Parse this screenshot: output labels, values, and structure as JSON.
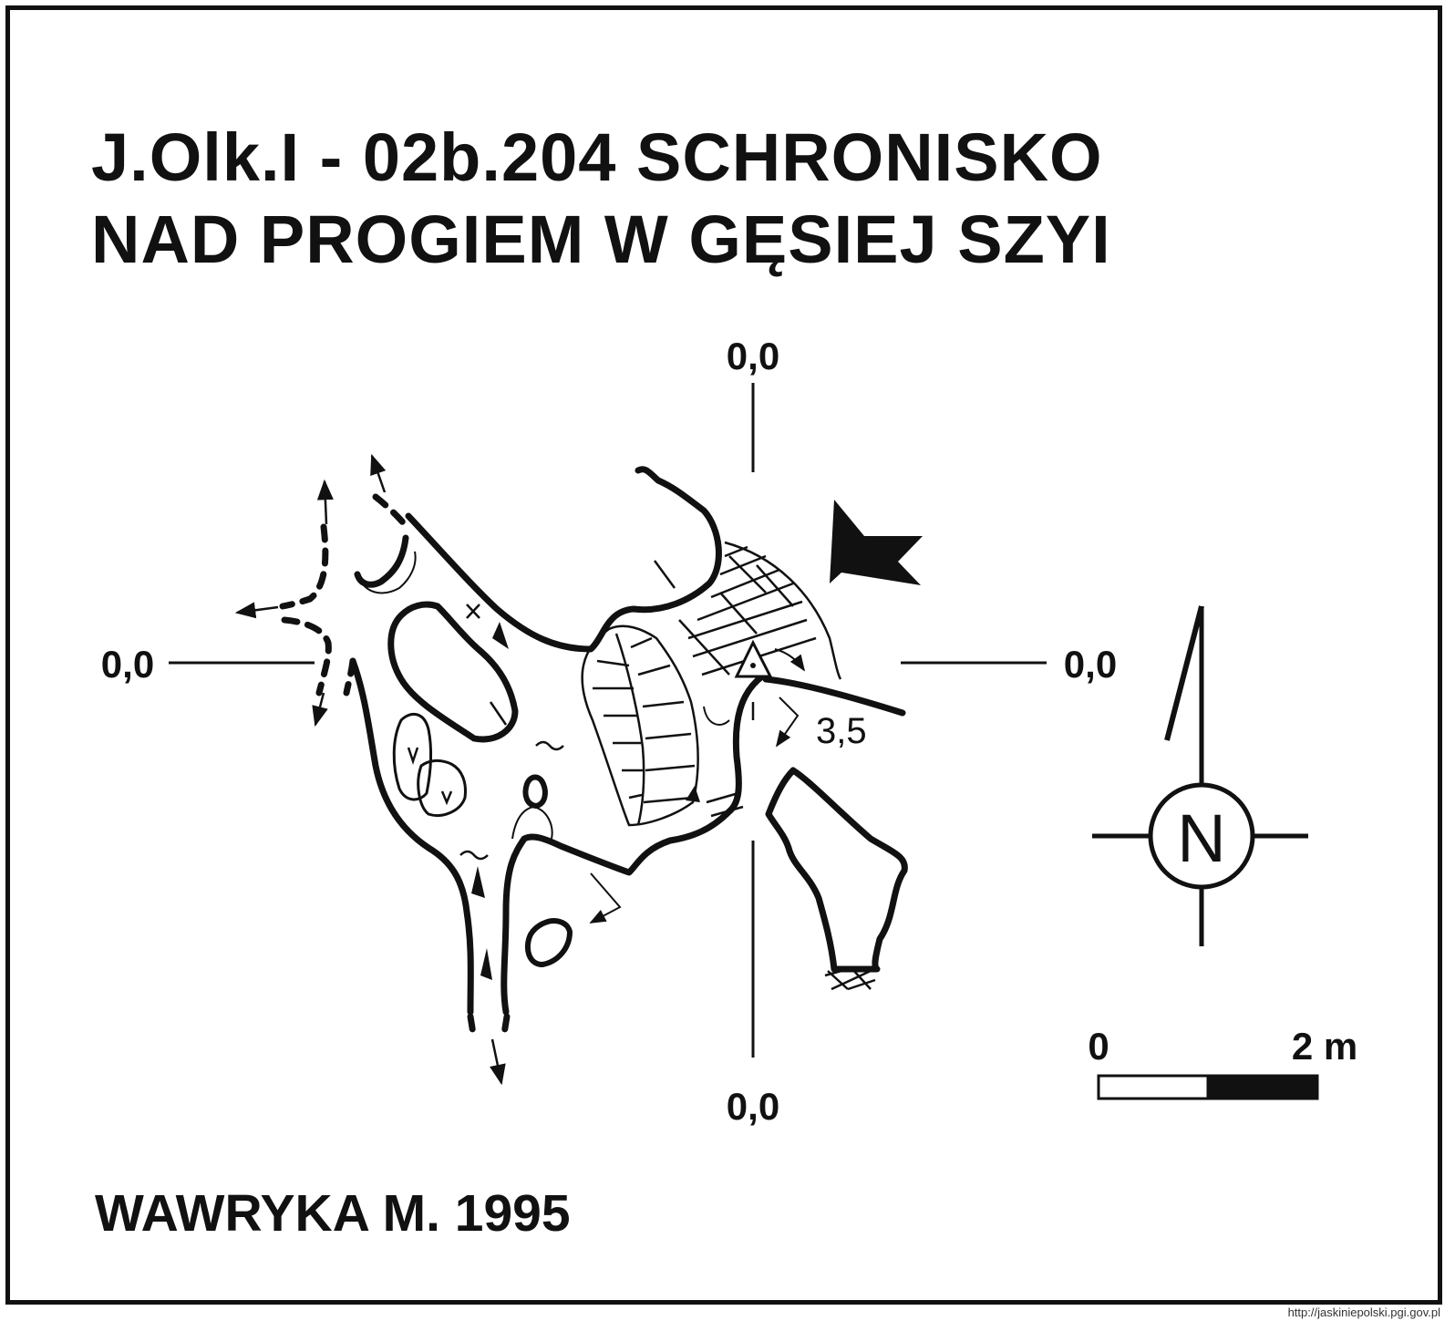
{
  "title": {
    "line1": "J.Olk.I - 02b.204  SCHRONISKO",
    "line2": "NAD PROGIEM W GĘSIEJ SZYI"
  },
  "datum_labels": {
    "top": "0,0",
    "left": "0,0",
    "right": "0,0",
    "bottom": "0,0"
  },
  "depth_label": "3,5",
  "north_label": "N",
  "scale": {
    "start_label": "0",
    "end_label": "2 m"
  },
  "author": "WAWRYKA M. 1995",
  "credit": "http://jaskiniepolski.pgi.gov.pl"
}
